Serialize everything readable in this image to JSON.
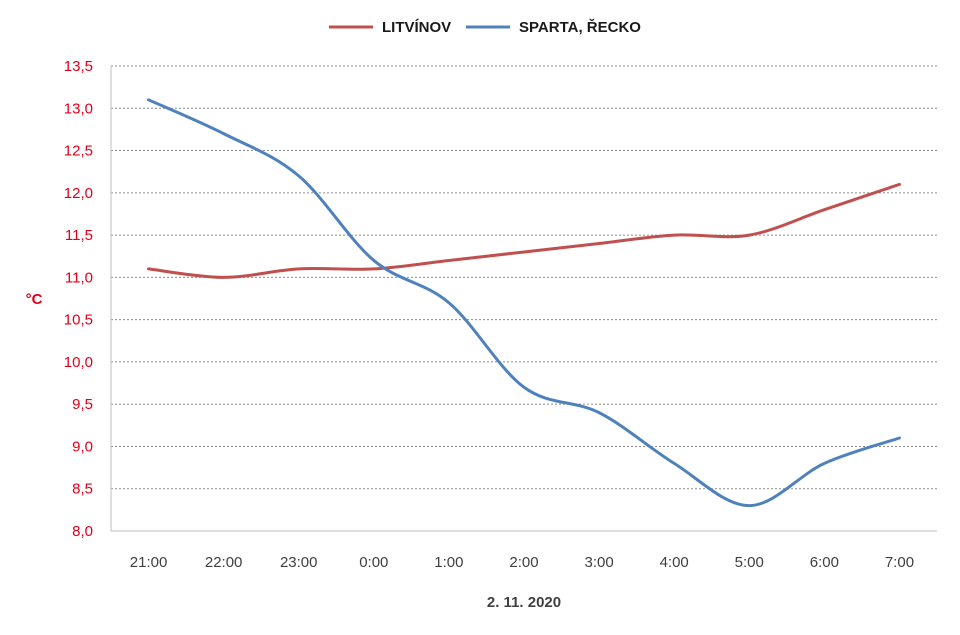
{
  "chart_data": {
    "type": "line",
    "categories": [
      "21:00",
      "22:00",
      "23:00",
      "0:00",
      "1:00",
      "2:00",
      "3:00",
      "4:00",
      "5:00",
      "6:00",
      "7:00"
    ],
    "series": [
      {
        "name": "LITVÍNOV",
        "color": "#c0504d",
        "values": [
          11.1,
          11.0,
          11.1,
          11.1,
          11.2,
          11.3,
          11.4,
          11.5,
          11.5,
          11.8,
          12.1
        ]
      },
      {
        "name": "SPARTA, ŘECKO",
        "color": "#4f81bd",
        "values": [
          13.1,
          12.7,
          12.2,
          11.2,
          10.7,
          9.7,
          9.4,
          8.8,
          8.3,
          8.8,
          9.1
        ]
      }
    ],
    "xlabel": "2. 11. 2020",
    "ylabel": "°C",
    "ylim": [
      8.0,
      13.5
    ],
    "yticks": [
      "8,0",
      "8,5",
      "9,0",
      "9,5",
      "10,0",
      "10,5",
      "11,0",
      "11,5",
      "12,0",
      "12,5",
      "13,0",
      "13,5"
    ],
    "ytick_step": 0.5,
    "grid": true,
    "legend_position": "top-center",
    "smooth": true
  }
}
